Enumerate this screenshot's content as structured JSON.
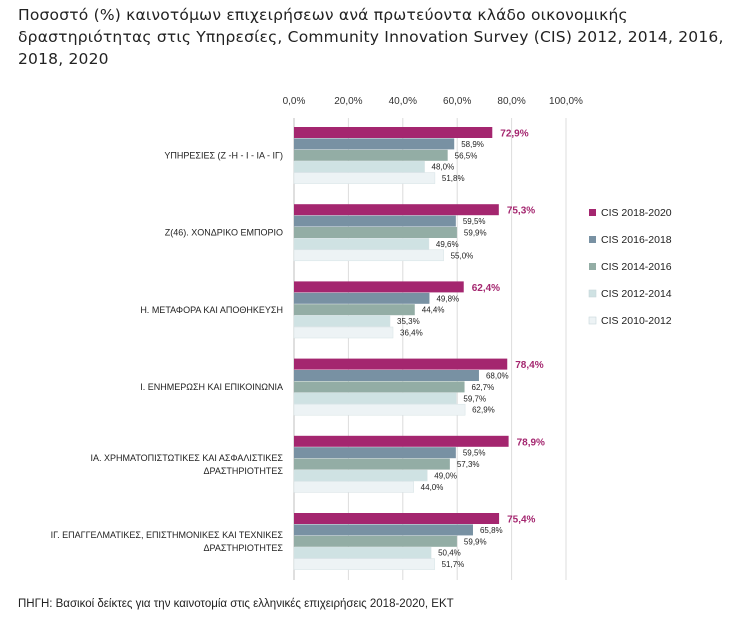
{
  "chart_data": {
    "type": "bar",
    "orientation": "horizontal",
    "title": "Ποσοστό (%) καινοτόμων επιχειρήσεων ανά πρωτεύοντα κλάδο οικονομικής δραστηριότητας στις Υπηρεσίες, Community Innovation Survey (CIS) 2012, 2014, 2016, 2018, 2020",
    "source": "ΠΗΓΗ: Βασικοί δείκτες για την καινοτομία στις ελληνικές επιχειρήσεις 2018-2020, ΕΚΤ",
    "xlim": [
      0,
      100
    ],
    "xticks": [
      0,
      20,
      40,
      60,
      80,
      100
    ],
    "xtick_labels": [
      "0,0%",
      "20,0%",
      "40,0%",
      "60,0%",
      "80,0%",
      "100,0%"
    ],
    "grid": true,
    "legend_position": "right",
    "categories": [
      [
        "ΥΠΗΡΕΣΙΕΣ (Ζ -Η - Ι - ΙΑ - ΙΓ)"
      ],
      [
        "Ζ(46). ΧΟΝΔΡΙΚΟ ΕΜΠΟΡΙΟ"
      ],
      [
        "Η. ΜΕΤΑΦΟΡΑ ΚΑΙ ΑΠΟΘΗΚΕΥΣΗ"
      ],
      [
        "Ι. ΕΝΗΜΕΡΩΣΗ ΚΑΙ ΕΠΙΚΟΙΝΩΝΙΑ"
      ],
      [
        "ΙΑ. ΧΡΗΜΑΤΟΠΙΣΤΩΤΙΚΕΣ ΚΑΙ ΑΣΦΑΛΙΣΤΙΚΕΣ",
        "ΔΡΑΣΤΗΡΙΟΤΗΤΕΣ"
      ],
      [
        "ΙΓ. ΕΠΑΓΓΕΛΜΑΤΙΚΕΣ, ΕΠΙΣΤΗΜΟΝΙΚΕΣ ΚΑΙ ΤΕΧΝΙΚΕΣ",
        "ΔΡΑΣΤΗΡΙΟΤΗΤΕΣ"
      ]
    ],
    "series": [
      {
        "name": "CIS 2018-2020",
        "color": "#a4266f",
        "values": [
          72.9,
          75.3,
          62.4,
          78.4,
          78.9,
          75.4
        ],
        "labels": [
          "72,9%",
          "75,3%",
          "62,4%",
          "78,4%",
          "78,9%",
          "75,4%"
        ]
      },
      {
        "name": "CIS 2016-2018",
        "color": "#7891a3",
        "values": [
          58.9,
          59.5,
          49.8,
          68.0,
          59.5,
          65.8
        ],
        "labels": [
          "58,9%",
          "59,5%",
          "49,8%",
          "68,0%",
          "59,5%",
          "65,8%"
        ]
      },
      {
        "name": "CIS 2014-2016",
        "color": "#93ada5",
        "values": [
          56.5,
          59.9,
          44.4,
          62.7,
          57.3,
          59.9
        ],
        "labels": [
          "56,5%",
          "59,9%",
          "44,4%",
          "62,7%",
          "57,3%",
          "59,9%"
        ]
      },
      {
        "name": "CIS 2012-2014",
        "color": "#cfe2e3",
        "values": [
          48.0,
          49.6,
          35.3,
          59.7,
          49.0,
          50.4
        ],
        "labels": [
          "48,0%",
          "49,6%",
          "35,3%",
          "59,7%",
          "49,0%",
          "50,4%"
        ]
      },
      {
        "name": "CIS 2010-2012",
        "color": "#edf3f5",
        "values": [
          51.8,
          55.0,
          36.4,
          62.9,
          44.0,
          51.7
        ],
        "labels": [
          "51,8%",
          "55,0%",
          "36,4%",
          "62,9%",
          "44,0%",
          "51,7%"
        ]
      }
    ]
  }
}
